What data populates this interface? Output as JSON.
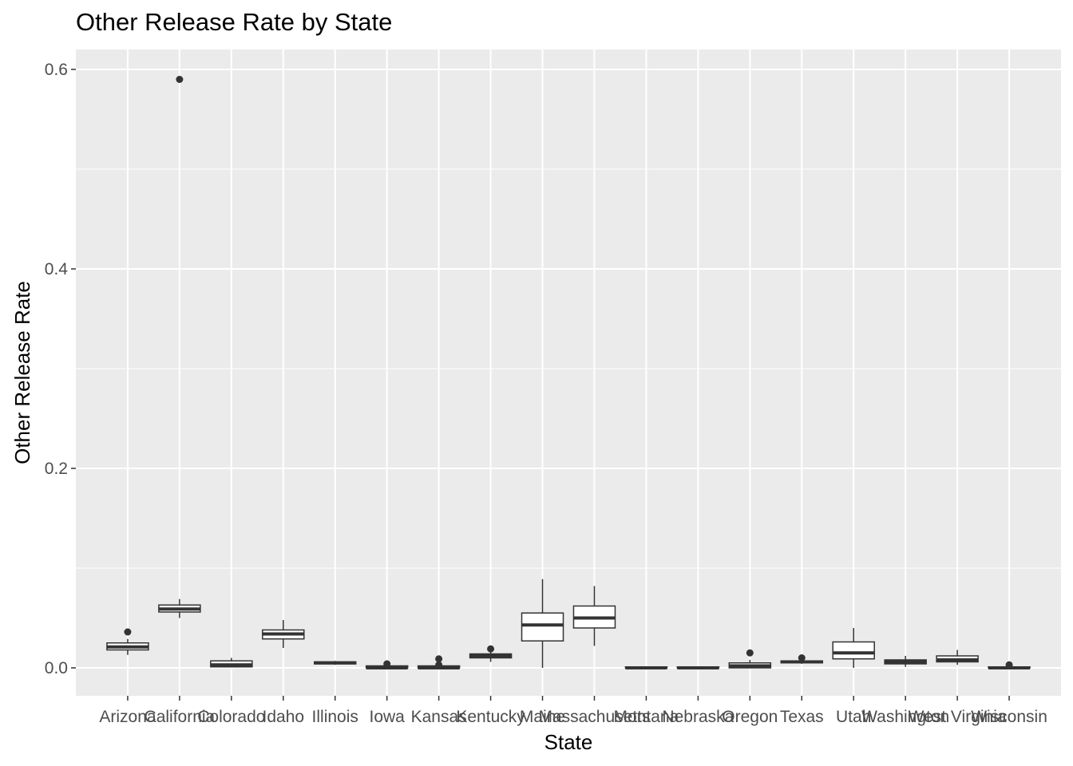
{
  "chart_data": {
    "type": "boxplot",
    "title": "Other Release Rate by State",
    "xlabel": "State",
    "ylabel": "Other Release Rate",
    "ylim": [
      -0.028,
      0.62
    ],
    "yticks": [
      0.0,
      0.2,
      0.4,
      0.6
    ],
    "ytick_labels": [
      "0.0",
      "0.2",
      "0.4",
      "0.6"
    ],
    "grid": true,
    "legend": "none",
    "panel_background": "#ebebeb",
    "grid_color": "#ffffff",
    "box_stroke": "#333333",
    "categories": [
      "Arizona",
      "California",
      "Colorado",
      "Idaho",
      "Illinois",
      "Iowa",
      "Kansas",
      "Kentucky",
      "Maine",
      "Massachusetts",
      "Montana",
      "Nebraska",
      "Oregon",
      "Texas",
      "Utah",
      "Washington",
      "West Virginia",
      "Wisconsin"
    ],
    "boxes": [
      {
        "state": "Arizona",
        "min": 0.013,
        "q1": 0.018,
        "median": 0.021,
        "q3": 0.025,
        "max": 0.029,
        "outliers": [
          0.036
        ]
      },
      {
        "state": "California",
        "min": 0.05,
        "q1": 0.056,
        "median": 0.059,
        "q3": 0.063,
        "max": 0.069,
        "outliers": [
          0.59
        ]
      },
      {
        "state": "Colorado",
        "min": 0.001,
        "q1": 0.001,
        "median": 0.003,
        "q3": 0.007,
        "max": 0.01,
        "outliers": []
      },
      {
        "state": "Idaho",
        "min": 0.02,
        "q1": 0.029,
        "median": 0.034,
        "q3": 0.038,
        "max": 0.048,
        "outliers": []
      },
      {
        "state": "Illinois",
        "min": 0.003,
        "q1": 0.004,
        "median": 0.005,
        "q3": 0.006,
        "max": 0.007,
        "outliers": []
      },
      {
        "state": "Iowa",
        "min": 0.0,
        "q1": 0.0,
        "median": 0.0,
        "q3": 0.002,
        "max": 0.003,
        "outliers": [
          0.004
        ]
      },
      {
        "state": "Kansas",
        "min": 0.0,
        "q1": 0.0,
        "median": 0.0,
        "q3": 0.002,
        "max": 0.003,
        "outliers": [
          0.003,
          0.009
        ]
      },
      {
        "state": "Kentucky",
        "min": 0.006,
        "q1": 0.01,
        "median": 0.012,
        "q3": 0.014,
        "max": 0.017,
        "outliers": [
          0.019
        ]
      },
      {
        "state": "Maine",
        "min": 0.0,
        "q1": 0.027,
        "median": 0.043,
        "q3": 0.055,
        "max": 0.089,
        "outliers": []
      },
      {
        "state": "Massachusetts",
        "min": 0.022,
        "q1": 0.04,
        "median": 0.05,
        "q3": 0.062,
        "max": 0.082,
        "outliers": []
      },
      {
        "state": "Montana",
        "min": 0.0,
        "q1": 0.0,
        "median": 0.0,
        "q3": 0.001,
        "max": 0.001,
        "outliers": []
      },
      {
        "state": "Nebraska",
        "min": 0.0,
        "q1": 0.0,
        "median": 0.0,
        "q3": 0.001,
        "max": 0.001,
        "outliers": []
      },
      {
        "state": "Oregon",
        "min": 0.0,
        "q1": 0.0,
        "median": 0.002,
        "q3": 0.005,
        "max": 0.008,
        "outliers": [
          0.015
        ]
      },
      {
        "state": "Texas",
        "min": 0.004,
        "q1": 0.005,
        "median": 0.006,
        "q3": 0.007,
        "max": 0.008,
        "outliers": [
          0.01
        ]
      },
      {
        "state": "Utah",
        "min": 0.0,
        "q1": 0.009,
        "median": 0.015,
        "q3": 0.026,
        "max": 0.04,
        "outliers": []
      },
      {
        "state": "Washington",
        "min": 0.001,
        "q1": 0.004,
        "median": 0.006,
        "q3": 0.008,
        "max": 0.012,
        "outliers": []
      },
      {
        "state": "West Virginia",
        "min": 0.003,
        "q1": 0.006,
        "median": 0.008,
        "q3": 0.012,
        "max": 0.018,
        "outliers": []
      },
      {
        "state": "Wisconsin",
        "min": 0.0,
        "q1": 0.0,
        "median": 0.0,
        "q3": 0.001,
        "max": 0.002,
        "outliers": [
          0.003
        ]
      }
    ]
  }
}
